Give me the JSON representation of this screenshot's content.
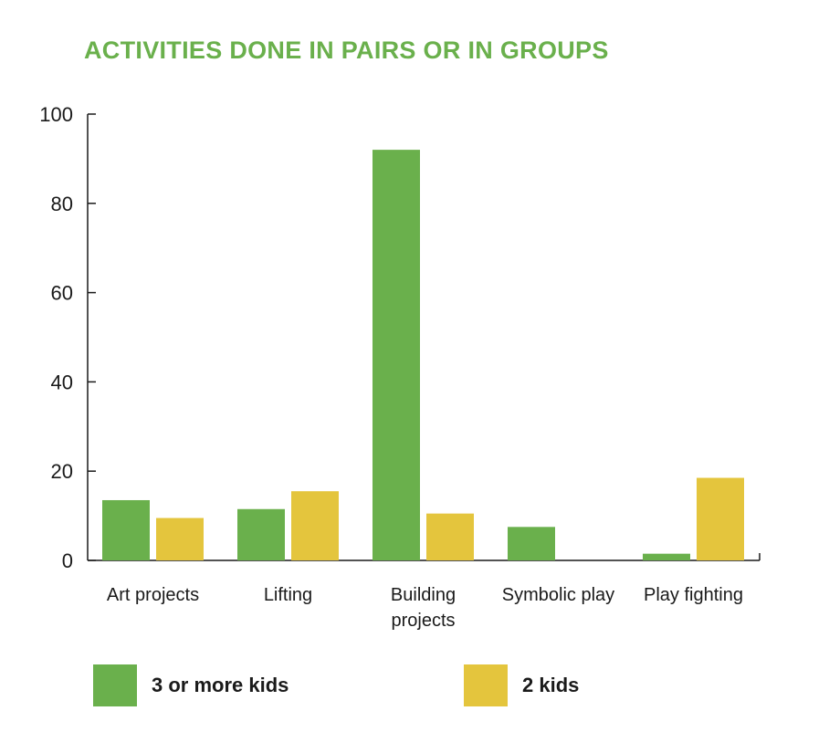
{
  "chart_data": {
    "type": "bar",
    "title": "ACTIVITIES DONE IN PAIRS OR IN GROUPS",
    "categories": [
      "Art projects",
      "Lifting",
      "Building projects",
      "Symbolic play",
      "Play fighting"
    ],
    "category_lines": [
      [
        "Art projects"
      ],
      [
        "Lifting"
      ],
      [
        "Building",
        "projects"
      ],
      [
        "Symbolic play"
      ],
      [
        "Play fighting"
      ]
    ],
    "series": [
      {
        "name": "3 or more kids",
        "color": "#6ab04c",
        "values": [
          13.5,
          11.5,
          92,
          7.5,
          1.5
        ]
      },
      {
        "name": "2 kids",
        "color": "#e4c53d",
        "values": [
          9.5,
          15.5,
          10.5,
          0,
          18.5
        ]
      }
    ],
    "ylim": [
      0,
      100
    ],
    "yticks": [
      0,
      20,
      40,
      60,
      80,
      100
    ],
    "xlabel": "",
    "ylabel": "",
    "grid": false,
    "legend_position": "bottom"
  }
}
